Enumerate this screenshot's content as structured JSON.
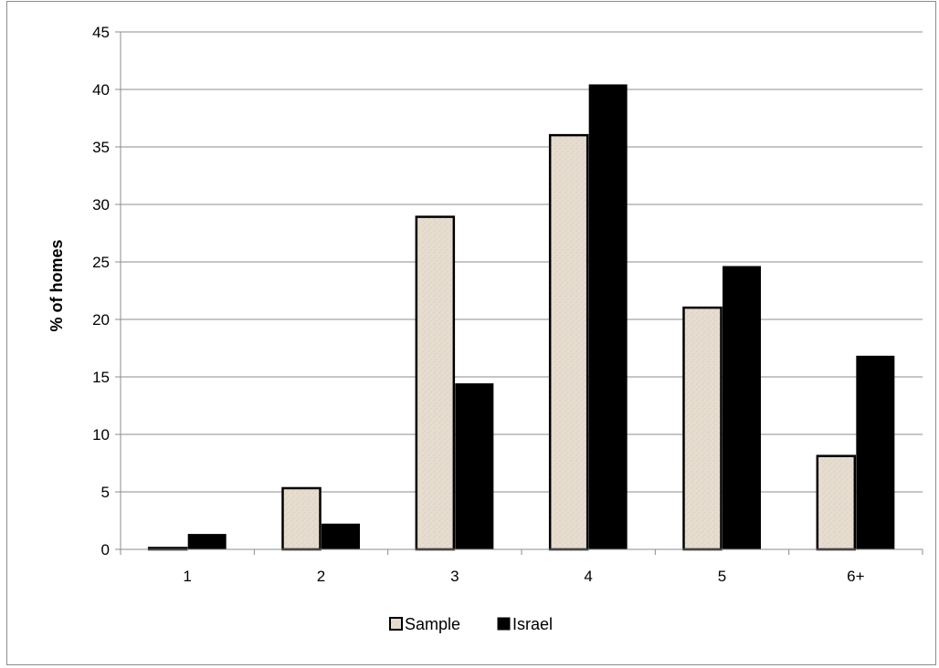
{
  "chart_data": {
    "type": "bar",
    "categories": [
      "1",
      "2",
      "3",
      "4",
      "5",
      "6+"
    ],
    "series": [
      {
        "name": "Sample",
        "values": [
          0.2,
          5.4,
          29.0,
          36.1,
          21.1,
          8.2
        ],
        "color": "#e6ddd0",
        "stroke": "#000000"
      },
      {
        "name": "Israel",
        "values": [
          1.3,
          2.2,
          14.4,
          40.4,
          24.6,
          16.8
        ],
        "color": "#000000",
        "stroke": "#000000"
      }
    ],
    "title": "",
    "xlabel": "",
    "ylabel": "% of homes",
    "ylim": [
      0,
      45
    ],
    "yticks": [
      0,
      5,
      10,
      15,
      20,
      25,
      30,
      35,
      40,
      45
    ],
    "grid": true,
    "legend": "bottom-center"
  }
}
